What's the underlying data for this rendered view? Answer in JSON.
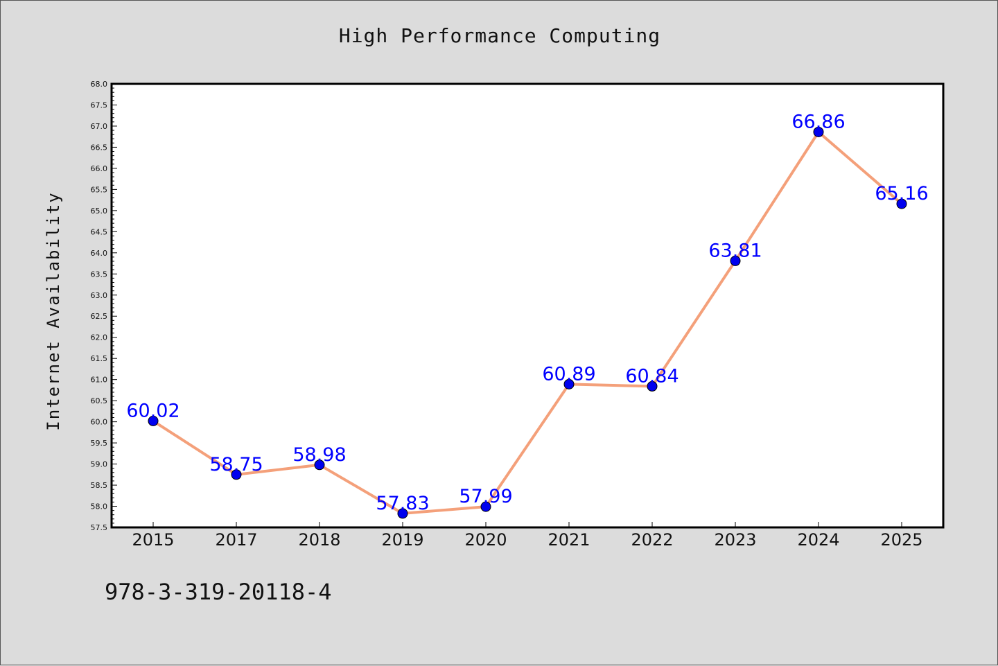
{
  "chart_data": {
    "type": "line",
    "title": "High Performance Computing",
    "xlabel": "",
    "ylabel": "Internet Availability",
    "categories": [
      "2015",
      "2017",
      "2018",
      "2019",
      "2020",
      "2021",
      "2022",
      "2023",
      "2024",
      "2025"
    ],
    "series": [
      {
        "values": [
          60.02,
          58.75,
          58.98,
          57.83,
          57.99,
          60.89,
          60.84,
          63.81,
          66.86,
          65.16
        ],
        "line_color": "#f4a07a",
        "marker_color": "#0000ee"
      }
    ],
    "data_labels": [
      "60.02",
      "58.75",
      "58.98",
      "57.83",
      "57.99",
      "60.89",
      "60.84",
      "63.81",
      "66.86",
      "65.16"
    ],
    "ylim": [
      57.5,
      68.0
    ],
    "y_ticks": [
      "57.5",
      "58.0",
      "58.5",
      "59.0",
      "59.5",
      "60.0",
      "60.5",
      "61.0",
      "61.5",
      "62.0",
      "62.5",
      "63.0",
      "63.5",
      "64.0",
      "64.5",
      "65.0",
      "65.5",
      "66.0",
      "66.5",
      "67.0",
      "67.5",
      "68.0"
    ],
    "grid": false,
    "legend": "none",
    "data_label_color": "#0000ff"
  },
  "footer": {
    "code": "978-3-319-20118-4"
  }
}
